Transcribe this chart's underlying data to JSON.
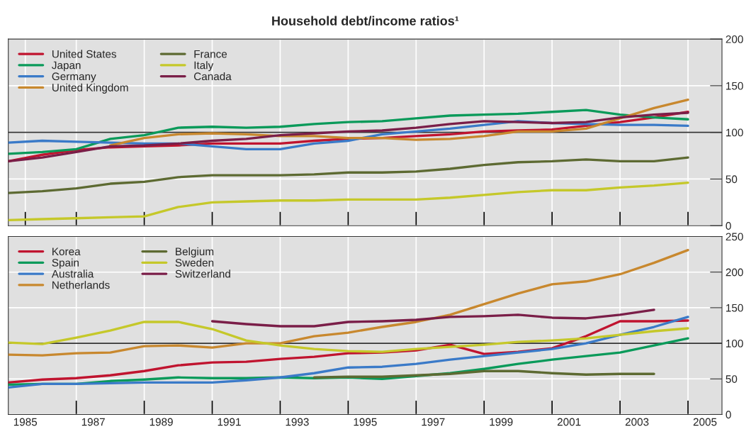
{
  "chart_data": [
    {
      "type": "line",
      "title": "Household debt/income ratios¹",
      "xlim": [
        1985,
        2006
      ],
      "ylim": [
        0,
        200
      ],
      "yticks": [
        0,
        50,
        100,
        150,
        200
      ],
      "tick_labels": "y",
      "grid": true,
      "legend": "top left",
      "line_style": "solid",
      "marker": "none",
      "xticks": [
        {
          "value": 1985.5,
          "label": null
        },
        {
          "value": 1987,
          "label": null
        },
        {
          "value": 1989,
          "label": null
        },
        {
          "value": 1991,
          "label": null
        },
        {
          "value": 1993,
          "label": null
        },
        {
          "value": 1995,
          "label": null
        },
        {
          "value": 1997,
          "label": null
        },
        {
          "value": 1999,
          "label": null
        },
        {
          "value": 2001,
          "label": null
        },
        {
          "value": 2003,
          "label": null
        },
        {
          "value": 2005,
          "label": null
        }
      ],
      "ref_lines": [
        {
          "axis": "y",
          "value": 100,
          "label": null,
          "color": "#333333"
        }
      ],
      "x": [
        1985,
        1986,
        1987,
        1988,
        1989,
        1990,
        1991,
        1992,
        1993,
        1994,
        1995,
        1996,
        1997,
        1998,
        1999,
        2000,
        2001,
        2002,
        2003,
        2004,
        2005
      ],
      "series": [
        {
          "name": "United States",
          "color": "#c0142f",
          "values": [
            69,
            76,
            81,
            84,
            85,
            86,
            88,
            88,
            88,
            91,
            93,
            94,
            96,
            98,
            101,
            102,
            103,
            107,
            111,
            116,
            122
          ]
        },
        {
          "name": "Japan",
          "color": "#0a9a5a",
          "values": [
            77,
            79,
            82,
            93,
            97,
            105,
            106,
            105,
            106,
            109,
            111,
            112,
            115,
            118,
            119,
            120,
            122,
            124,
            119,
            116,
            114
          ]
        },
        {
          "name": "Germany",
          "color": "#3a7ac8",
          "values": [
            89,
            91,
            90,
            89,
            88,
            88,
            85,
            82,
            82,
            88,
            91,
            98,
            101,
            104,
            108,
            112,
            110,
            109,
            108,
            108,
            107
          ]
        },
        {
          "name": "United Kingdom",
          "color": "#c8882e",
          "values": [
            null,
            null,
            null,
            86,
            94,
            98,
            99,
            98,
            96,
            96,
            94,
            94,
            92,
            93,
            96,
            101,
            101,
            104,
            115,
            126,
            135
          ]
        },
        {
          "name": "France",
          "color": "#5d6a32",
          "values": [
            35,
            37,
            40,
            45,
            47,
            52,
            54,
            54,
            54,
            55,
            57,
            57,
            58,
            61,
            65,
            68,
            69,
            71,
            69,
            69,
            73
          ]
        },
        {
          "name": "Italy",
          "color": "#c5c82a",
          "values": [
            6,
            7,
            8,
            9,
            10,
            20,
            25,
            26,
            27,
            27,
            28,
            28,
            28,
            30,
            33,
            36,
            38,
            38,
            41,
            43,
            46
          ]
        },
        {
          "name": "Canada",
          "color": "#7a1e48",
          "values": [
            69,
            73,
            79,
            85,
            86,
            88,
            91,
            93,
            97,
            99,
            101,
            102,
            105,
            109,
            112,
            111,
            110,
            111,
            116,
            119,
            121
          ]
        }
      ]
    },
    {
      "type": "line",
      "xlim": [
        1985,
        2006
      ],
      "ylim": [
        0,
        250
      ],
      "yticks": [
        0,
        50,
        100,
        150,
        200,
        250
      ],
      "grid": true,
      "legend": "top left",
      "line_style": "solid",
      "marker": "none",
      "xticks": [
        {
          "value": 1985.5,
          "label": "1985"
        },
        {
          "value": 1987.5,
          "label": "1987"
        },
        {
          "value": 1989.5,
          "label": "1989"
        },
        {
          "value": 1991.5,
          "label": "1991"
        },
        {
          "value": 1993.5,
          "label": "1993"
        },
        {
          "value": 1995.5,
          "label": "1995"
        },
        {
          "value": 1997.5,
          "label": "1997"
        },
        {
          "value": 1999.5,
          "label": "1999"
        },
        {
          "value": 2001.5,
          "label": "2001"
        },
        {
          "value": 2003.5,
          "label": "2003"
        },
        {
          "value": 2005.5,
          "label": "2005"
        },
        {
          "value": 1987,
          "label": null
        },
        {
          "value": 1989,
          "label": null
        },
        {
          "value": 1991,
          "label": null
        },
        {
          "value": 1993,
          "label": null
        },
        {
          "value": 1995,
          "label": null
        },
        {
          "value": 1997,
          "label": null
        },
        {
          "value": 1999,
          "label": null
        },
        {
          "value": 2001,
          "label": null
        },
        {
          "value": 2003,
          "label": null
        },
        {
          "value": 2005,
          "label": null
        }
      ],
      "ref_lines": [
        {
          "axis": "y",
          "value": 100,
          "label": null,
          "color": "#333333"
        }
      ],
      "x": [
        1985,
        1986,
        1987,
        1988,
        1989,
        1990,
        1991,
        1992,
        1993,
        1994,
        1995,
        1996,
        1997,
        1998,
        1999,
        2000,
        2001,
        2002,
        2003,
        2004,
        2005
      ],
      "series": [
        {
          "name": "Korea",
          "color": "#c0142f",
          "values": [
            45,
            49,
            51,
            55,
            61,
            69,
            73,
            74,
            78,
            81,
            86,
            87,
            90,
            98,
            85,
            88,
            93,
            110,
            131,
            131,
            132
          ]
        },
        {
          "name": "Spain",
          "color": "#0a9a5a",
          "values": [
            42,
            43,
            43,
            47,
            49,
            52,
            51,
            51,
            52,
            51,
            52,
            50,
            54,
            58,
            64,
            71,
            77,
            82,
            87,
            97,
            107
          ]
        },
        {
          "name": "Australia",
          "color": "#3a7ac8",
          "values": [
            38,
            43,
            43,
            44,
            45,
            45,
            45,
            48,
            52,
            58,
            66,
            67,
            71,
            77,
            82,
            87,
            92,
            100,
            112,
            123,
            137
          ]
        },
        {
          "name": "Netherlands",
          "color": "#c8882e",
          "values": [
            84,
            83,
            86,
            87,
            96,
            97,
            94,
            100,
            100,
            110,
            115,
            123,
            130,
            140,
            155,
            170,
            183,
            187,
            197,
            213,
            231
          ]
        },
        {
          "name": "Belgium",
          "color": "#5d6a32",
          "values": [
            null,
            null,
            null,
            null,
            null,
            null,
            null,
            null,
            null,
            52,
            53,
            53,
            55,
            57,
            61,
            61,
            58,
            56,
            57,
            57,
            null
          ]
        },
        {
          "name": "Sweden",
          "color": "#c5c82a",
          "values": [
            101,
            99,
            108,
            118,
            130,
            130,
            120,
            104,
            97,
            92,
            89,
            88,
            92,
            95,
            98,
            102,
            104,
            107,
            112,
            117,
            121
          ]
        },
        {
          "name": "Switzerland",
          "color": "#7a1e48",
          "values": [
            null,
            null,
            null,
            null,
            null,
            null,
            131,
            127,
            124,
            124,
            130,
            131,
            133,
            137,
            138,
            140,
            136,
            135,
            140,
            147,
            null
          ]
        }
      ]
    }
  ]
}
